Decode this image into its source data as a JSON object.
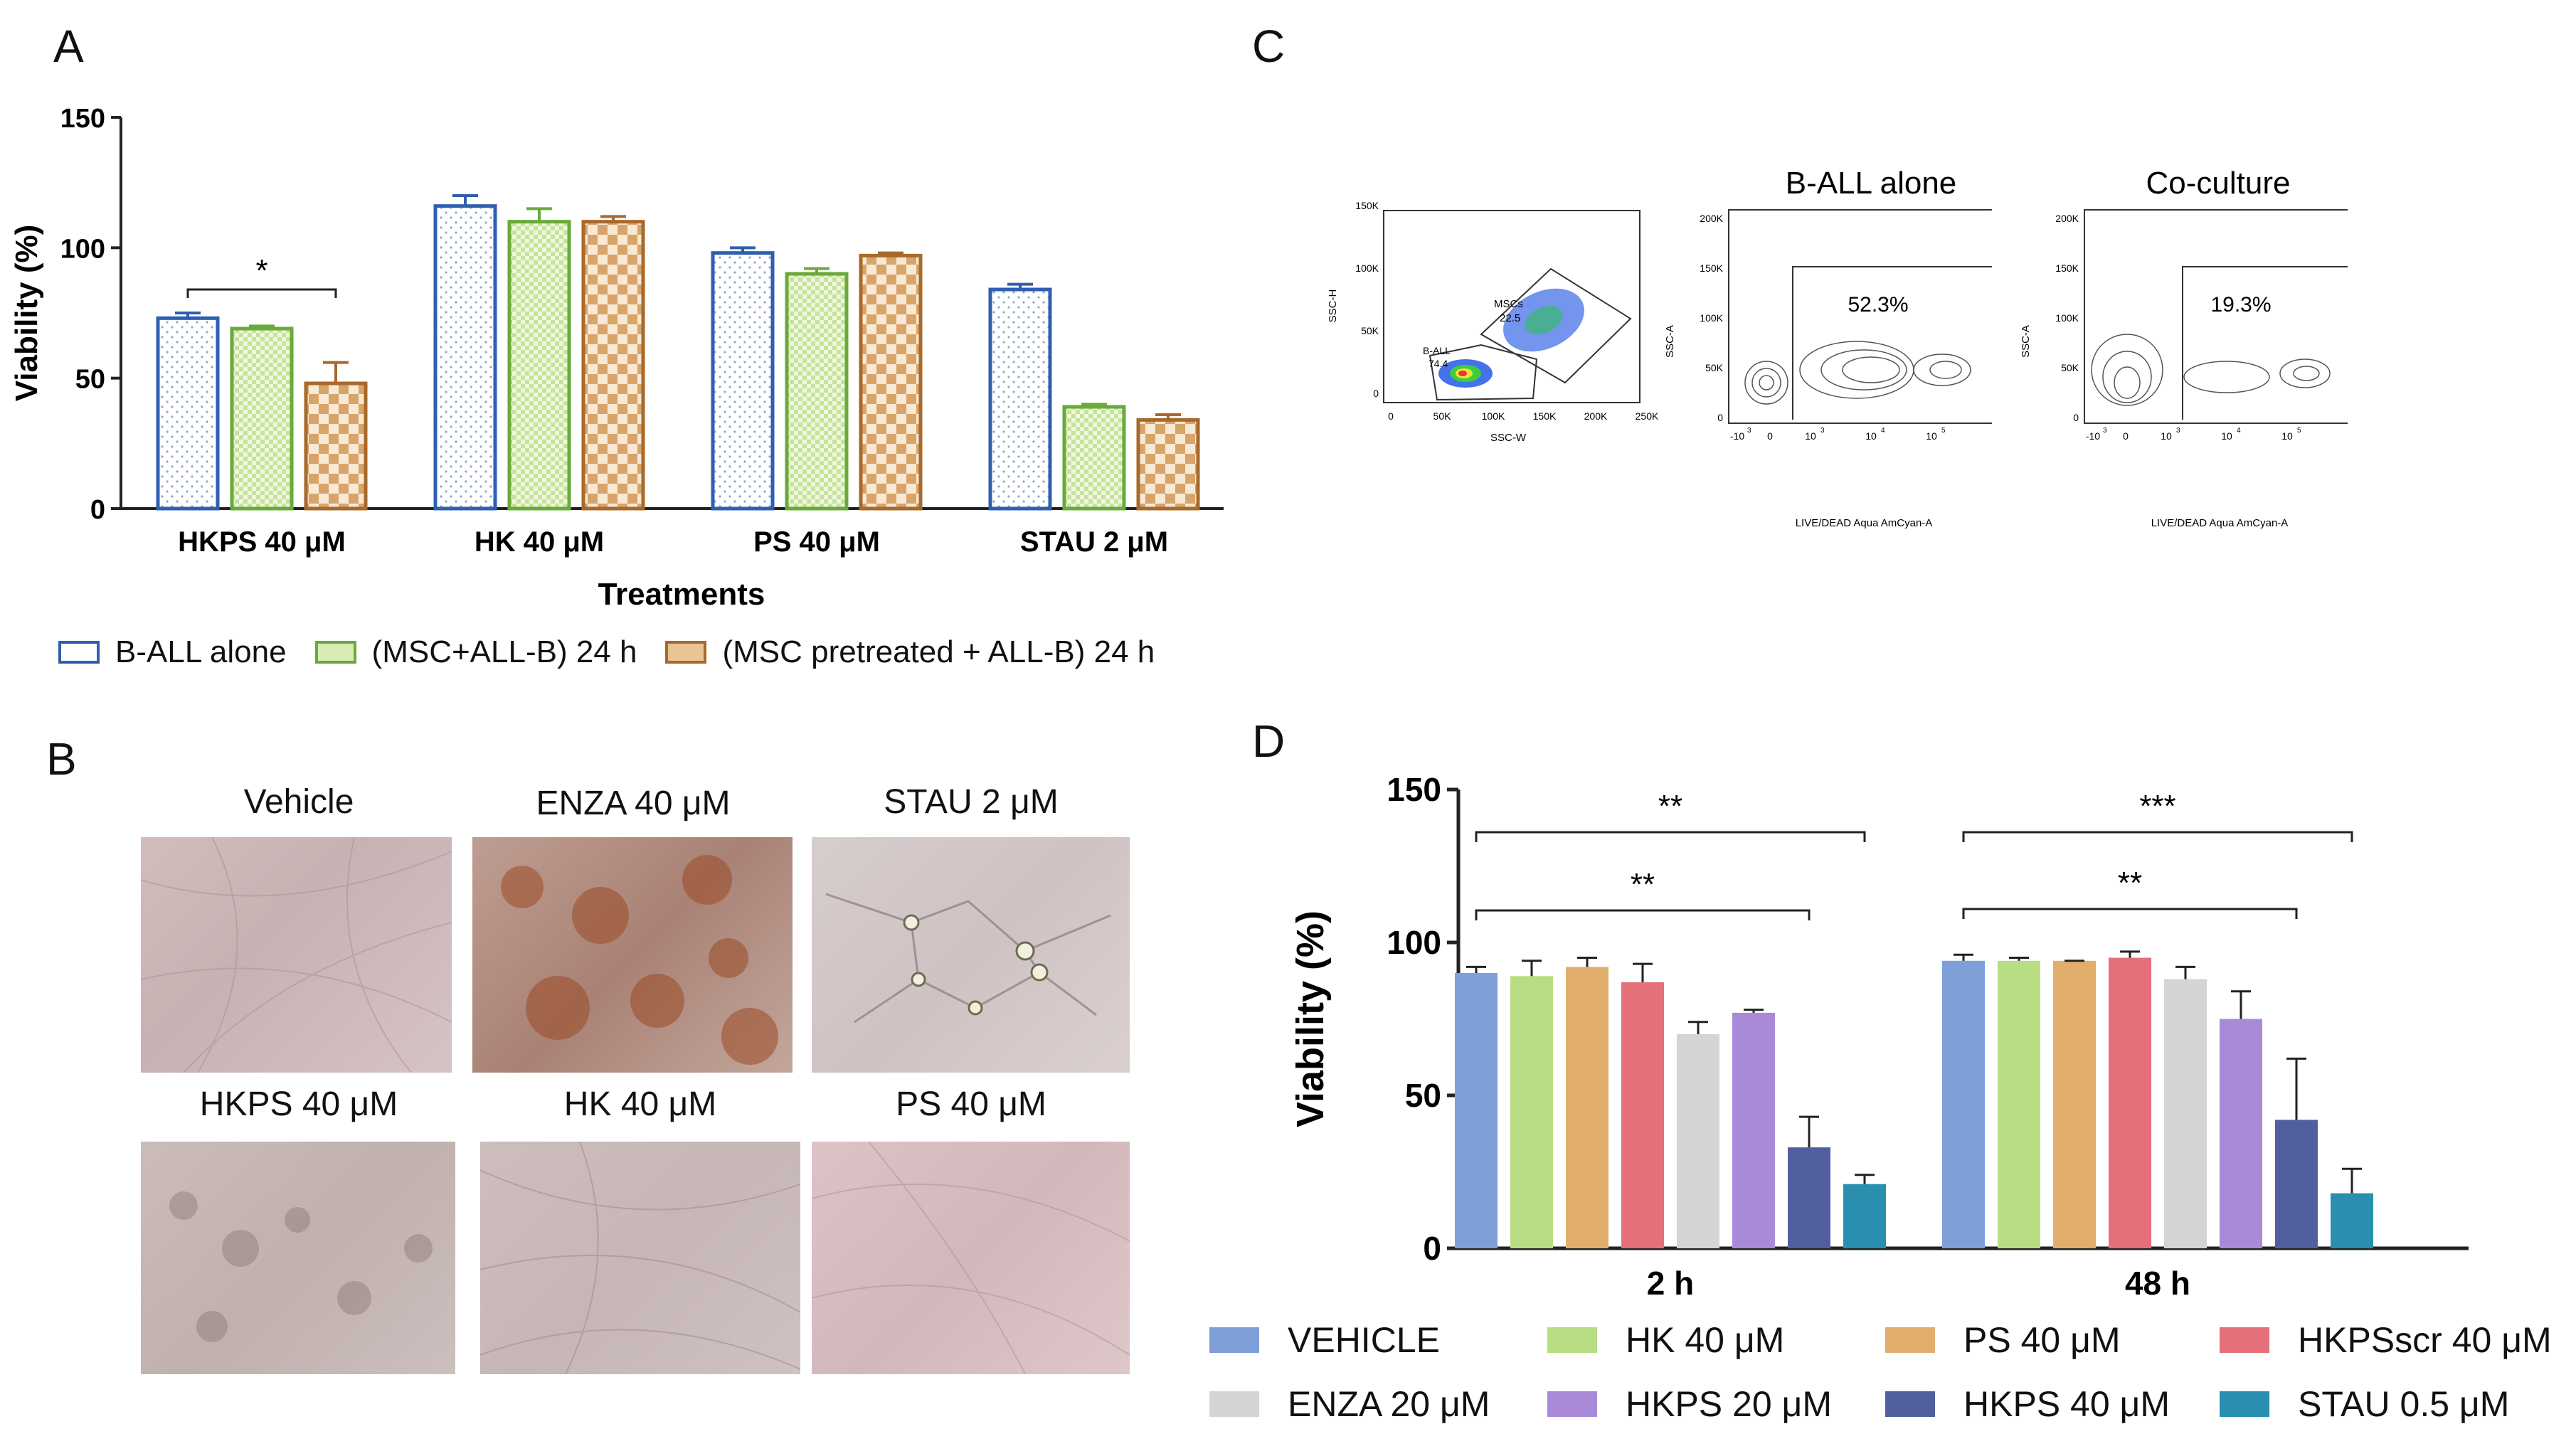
{
  "panels": {
    "a": "A",
    "b": "B",
    "c": "C",
    "d": "D"
  },
  "colors": {
    "b_all_alone": "#2f5fb0",
    "msc_all_b": "#6aaa3a",
    "msc_pretreated": "#a8692a"
  },
  "chart_data": [
    {
      "id": "A",
      "type": "bar",
      "title": "",
      "xlabel": "Treatments",
      "ylabel": "Viability (%)",
      "ylim": [
        0,
        150
      ],
      "yticks": [
        "0",
        "50",
        "100",
        "150"
      ],
      "categories": [
        "HKPS 40 μM",
        "HK 40 μM",
        "PS 40 μM",
        "STAU 2 μM"
      ],
      "series": [
        {
          "name": "B-ALL alone",
          "values": [
            73,
            116,
            98,
            84
          ],
          "errors": [
            2,
            4,
            2,
            2
          ]
        },
        {
          "name": "(MSC+ALL-B) 24 h",
          "values": [
            69,
            110,
            90,
            39
          ],
          "errors": [
            1,
            5,
            2,
            1
          ]
        },
        {
          "name": "(MSC pretreated + ALL-B) 24 h",
          "values": [
            48,
            110,
            97,
            34
          ],
          "errors": [
            8,
            2,
            1,
            2
          ]
        }
      ],
      "annotations": [
        {
          "label": "*",
          "category": "HKPS 40 μM"
        }
      ],
      "legend": "bottom"
    },
    {
      "id": "D",
      "type": "bar",
      "title": "",
      "xlabel": "",
      "ylabel": "Viability (%)",
      "ylim": [
        0,
        150
      ],
      "yticks": [
        "0",
        "50",
        "100",
        "150"
      ],
      "categories": [
        "2 h",
        "48 h"
      ],
      "series": [
        {
          "name": "VEHICLE",
          "color": "#7f9fd8",
          "values": [
            90,
            94
          ],
          "errors": [
            2,
            2
          ]
        },
        {
          "name": "HK 40 μM",
          "color": "#b8dd82",
          "values": [
            89,
            94
          ],
          "errors": [
            5,
            1
          ]
        },
        {
          "name": "PS 40 μM",
          "color": "#e2ae6c",
          "values": [
            92,
            94
          ],
          "errors": [
            3,
            0
          ]
        },
        {
          "name": "HKPSscr 40 μM",
          "color": "#e3707a",
          "values": [
            87,
            95
          ],
          "errors": [
            6,
            2
          ]
        },
        {
          "name": "ENZA 20 μM",
          "color": "#d4d4d4",
          "values": [
            70,
            88
          ],
          "errors": [
            4,
            4
          ]
        },
        {
          "name": "HKPS 20 μM",
          "color": "#a88ad8",
          "values": [
            77,
            75
          ],
          "errors": [
            1,
            9
          ]
        },
        {
          "name": "HKPS 40 μM",
          "color": "#525f9e",
          "values": [
            33,
            42
          ],
          "errors": [
            10,
            20
          ]
        },
        {
          "name": "STAU 0.5 μM",
          "color": "#2a8fae",
          "values": [
            21,
            18
          ],
          "errors": [
            3,
            8
          ]
        }
      ],
      "annotations": [
        {
          "label": "**",
          "category": "2 h",
          "from": "VEHICLE",
          "to": "STAU 0.5 μM"
        },
        {
          "label": "**",
          "category": "2 h",
          "from": "VEHICLE",
          "to": "HKPS 40 μM"
        },
        {
          "label": "***",
          "category": "48 h",
          "from": "VEHICLE",
          "to": "STAU 0.5 μM"
        },
        {
          "label": "**",
          "category": "48 h",
          "from": "VEHICLE",
          "to": "HKPS 40 μM"
        }
      ],
      "legend": "bottom"
    }
  ],
  "micrographs": [
    {
      "caption": "Vehicle",
      "tone": "#cdb6b6"
    },
    {
      "caption": "ENZA  40 μM",
      "tone": "#b7958a"
    },
    {
      "caption": "STAU 2 μM",
      "tone": "#d4c8c8"
    },
    {
      "caption": "HKPS 40 μM",
      "tone": "#c7b8b5"
    },
    {
      "caption": "HK 40 μM",
      "tone": "#c9b9b8"
    },
    {
      "caption": "PS 40 μM",
      "tone": "#d8bfc1"
    }
  ],
  "flow": {
    "plot1": {
      "title": "",
      "xlabel": "SSC-W",
      "ylabel": "SSC-H",
      "xticks": [
        "0",
        "50K",
        "100K",
        "150K",
        "200K",
        "250K"
      ],
      "yticks": [
        "0",
        "50K",
        "100K",
        "150K"
      ],
      "gate_msc": "MSCs",
      "gate_msc_value": "22.5",
      "gate_ball": "B-ALL",
      "gate_ball_value": "74.4"
    },
    "plot2": {
      "title": "B-ALL alone",
      "xlabel": "LIVE/DEAD Aqua AmCyan-A",
      "ylabel": "SSC-A",
      "xticks": [
        "-10",
        "0",
        "10",
        "10",
        "10"
      ],
      "xexp": [
        "3",
        "",
        "3",
        "4",
        "5"
      ],
      "yticks": [
        "0",
        "50K",
        "100K",
        "150K",
        "200K"
      ],
      "gate_value": "52.3%"
    },
    "plot3": {
      "title": "Co-culture",
      "xlabel": "LIVE/DEAD Aqua AmCyan-A",
      "ylabel": "SSC-A",
      "xticks": [
        "-10",
        "0",
        "10",
        "10",
        "10"
      ],
      "xexp": [
        "3",
        "",
        "3",
        "4",
        "5"
      ],
      "yticks": [
        "0",
        "50K",
        "100K",
        "150K",
        "200K"
      ],
      "gate_value": "19.3%"
    }
  }
}
